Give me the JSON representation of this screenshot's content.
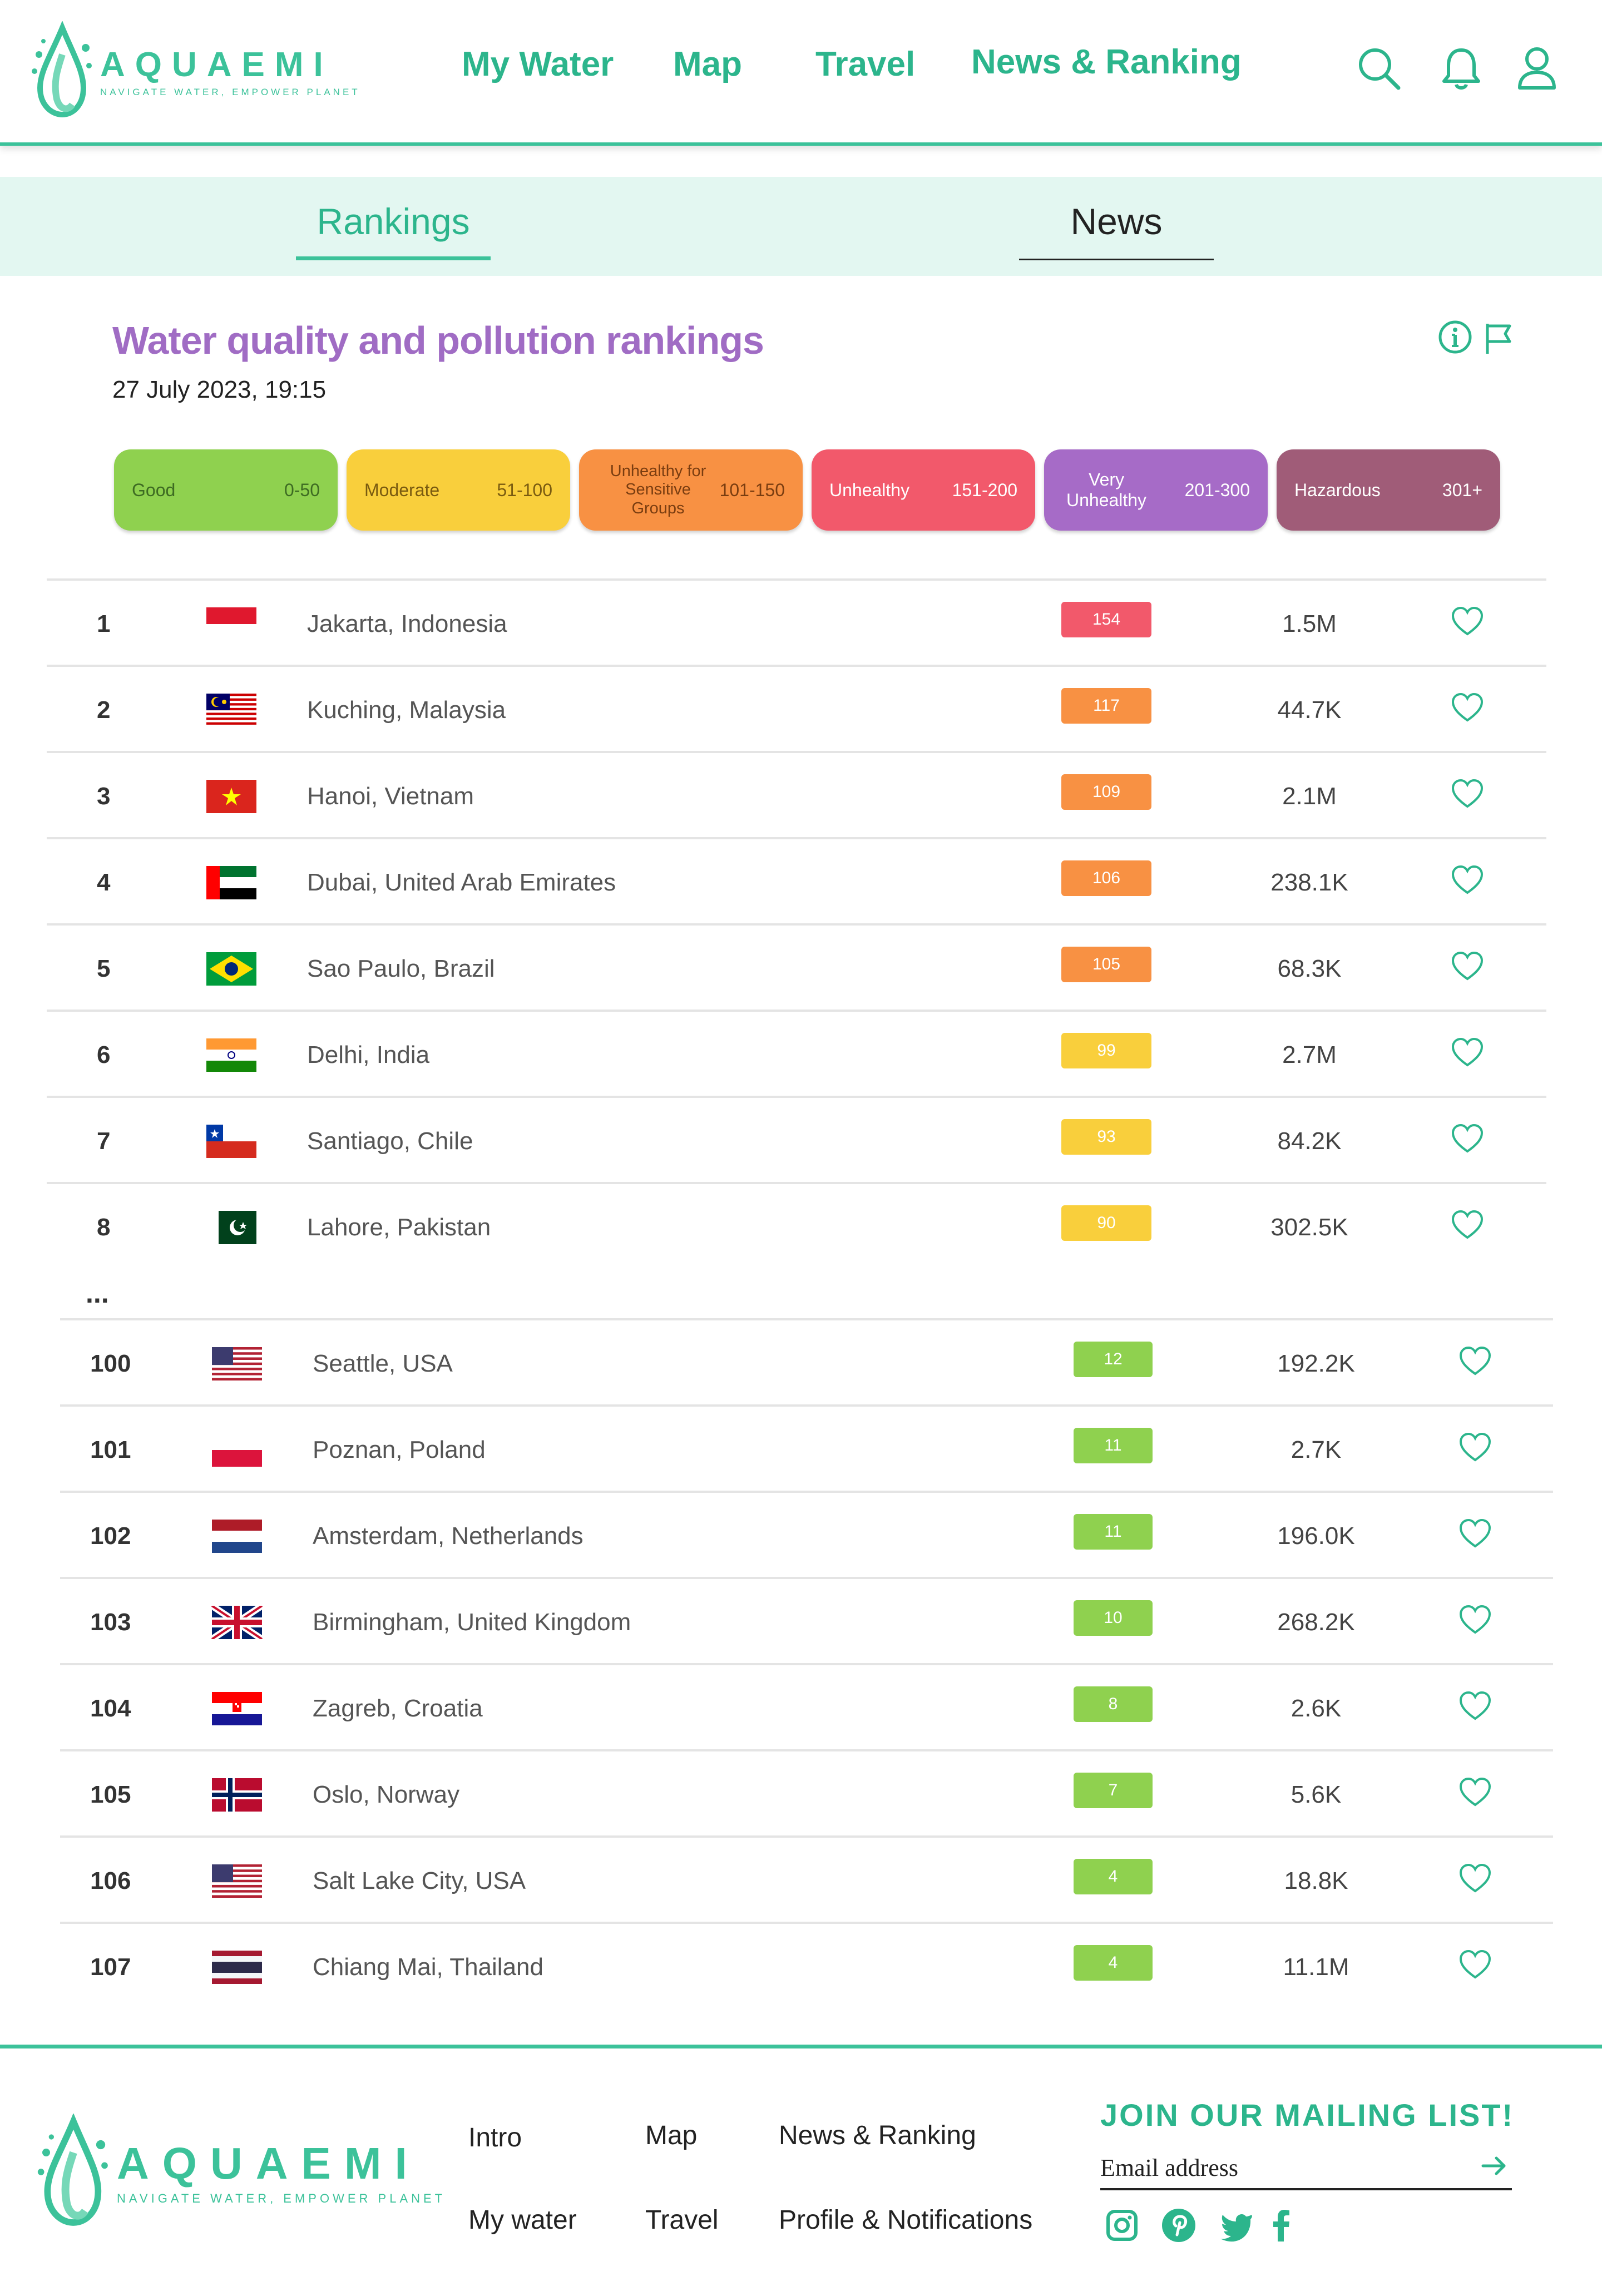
{
  "brand": {
    "name": "AQUAEMI",
    "tagline": "NAVIGATE WATER, EMPOWER PLANET",
    "color": "#3cc29a"
  },
  "nav": {
    "items": [
      {
        "label": "My Water"
      },
      {
        "label": "Map"
      },
      {
        "label": "Travel"
      },
      {
        "label": "News & Ranking"
      }
    ],
    "icons": [
      "search-icon",
      "bell-icon",
      "user-icon"
    ]
  },
  "tabs": [
    {
      "label": "Rankings",
      "active": true
    },
    {
      "label": "News",
      "active": false
    }
  ],
  "page": {
    "title": "Water quality and pollution rankings",
    "date": "27 July 2023, 19:15"
  },
  "legend": [
    {
      "label": "Good",
      "range": "0-50",
      "color": "#8fd14f"
    },
    {
      "label": "Moderate",
      "range": "51-100",
      "color": "#f9cf3c"
    },
    {
      "label": "Unhealthy for Sensitive Groups",
      "range": "101-150",
      "color": "#f89143"
    },
    {
      "label": "Unhealthy",
      "range": "151-200",
      "color": "#f2596b"
    },
    {
      "label": "Very Unhealthy",
      "range": "201-300",
      "color": "#a66bc7"
    },
    {
      "label": "Hazardous",
      "range": "301+",
      "color": "#a05c78"
    }
  ],
  "rankings": [
    {
      "rank": "1",
      "city": "Jakarta, Indonesia",
      "flag": "indonesia",
      "score": "154",
      "population": "1.5M"
    },
    {
      "rank": "2",
      "city": "Kuching, Malaysia",
      "flag": "malaysia",
      "score": "117",
      "population": "44.7K"
    },
    {
      "rank": "3",
      "city": "Hanoi, Vietnam",
      "flag": "vietnam",
      "score": "109",
      "population": "2.1M"
    },
    {
      "rank": "4",
      "city": "Dubai, United Arab Emirates",
      "flag": "uae",
      "score": "106",
      "population": "238.1K"
    },
    {
      "rank": "5",
      "city": "Sao Paulo, Brazil",
      "flag": "brazil",
      "score": "105",
      "population": "68.3K"
    },
    {
      "rank": "6",
      "city": "Delhi, India",
      "flag": "india",
      "score": "99",
      "population": "2.7M"
    },
    {
      "rank": "7",
      "city": "Santiago, Chile",
      "flag": "chile",
      "score": "93",
      "population": "84.2K"
    },
    {
      "rank": "8",
      "city": "Lahore, Pakistan",
      "flag": "pakistan",
      "score": "90",
      "population": "302.5K"
    }
  ],
  "ellipsis": "...",
  "rankings_bottom": [
    {
      "rank": "100",
      "city": "Seattle, USA",
      "flag": "usa",
      "score": "12",
      "population": "192.2K"
    },
    {
      "rank": "101",
      "city": "Poznan, Poland",
      "flag": "poland",
      "score": "11",
      "population": "2.7K"
    },
    {
      "rank": "102",
      "city": "Amsterdam, Netherlands",
      "flag": "netherlands",
      "score": "11",
      "population": "196.0K"
    },
    {
      "rank": "103",
      "city": "Birmingham, United Kingdom",
      "flag": "uk",
      "score": "10",
      "population": "268.2K"
    },
    {
      "rank": "104",
      "city": "Zagreb, Croatia",
      "flag": "croatia",
      "score": "8",
      "population": "2.6K"
    },
    {
      "rank": "105",
      "city": "Oslo, Norway",
      "flag": "norway",
      "score": "7",
      "population": "5.6K"
    },
    {
      "rank": "106",
      "city": "Salt Lake City, USA",
      "flag": "usa",
      "score": "4",
      "population": "18.8K"
    },
    {
      "rank": "107",
      "city": "Chiang Mai, Thailand",
      "flag": "thailand",
      "score": "4",
      "population": "11.1M"
    }
  ],
  "footer": {
    "links": [
      {
        "label": "Intro"
      },
      {
        "label": "Map"
      },
      {
        "label": "News & Ranking"
      },
      {
        "label": "My water"
      },
      {
        "label": "Travel"
      },
      {
        "label": "Profile & Notifications"
      }
    ],
    "mailing_title": "JOIN OUR MAILING LIST!",
    "email_placeholder": "Email address",
    "social": [
      "instagram-icon",
      "pinterest-icon",
      "twitter-icon",
      "facebook-icon"
    ]
  }
}
